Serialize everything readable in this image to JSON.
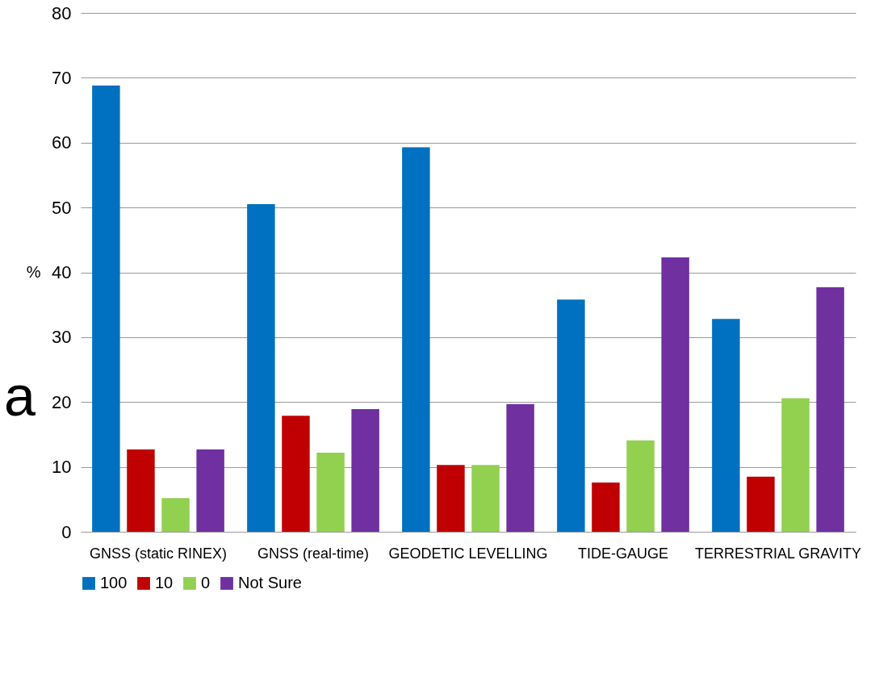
{
  "chart_data": {
    "type": "bar",
    "ylabel": "%",
    "categories": [
      "GNSS (static RINEX)",
      "GNSS (real-time)",
      "GEODETIC LEVELLING",
      "TIDE-GAUGE",
      "TERRESTRIAL GRAVITY"
    ],
    "series": [
      {
        "name": "100",
        "color": "#0070c0",
        "values": [
          68.8,
          50.5,
          59.3,
          35.8,
          32.8
        ]
      },
      {
        "name": "10",
        "color": "#c00000",
        "values": [
          12.7,
          17.9,
          10.3,
          7.6,
          8.5
        ]
      },
      {
        "name": "0",
        "color": "#92d050",
        "values": [
          5.2,
          12.2,
          10.3,
          14.1,
          20.6
        ]
      },
      {
        "name": "Not Sure",
        "color": "#7030a0",
        "values": [
          12.7,
          18.9,
          19.7,
          42.3,
          37.7
        ]
      }
    ],
    "ylim": [
      0,
      80
    ],
    "yticks": [
      0,
      10,
      20,
      30,
      40,
      50,
      60,
      70,
      80
    ],
    "grid": "y",
    "legend": "bottom",
    "annotations": [
      "a"
    ]
  }
}
